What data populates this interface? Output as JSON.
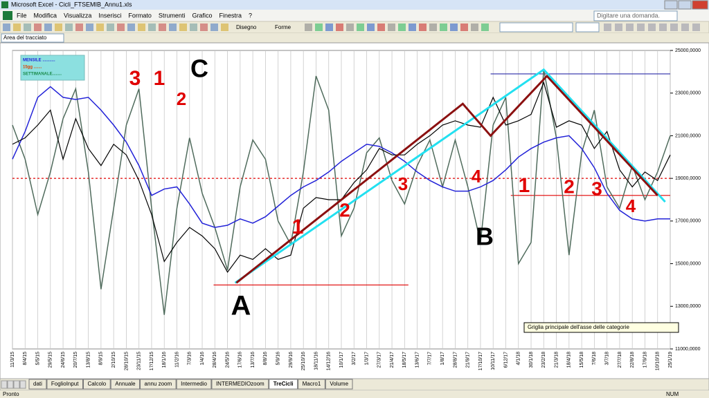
{
  "window": {
    "title": "Microsoft Excel - Cicli_FTSEMIB_Annu1.xls"
  },
  "menu": [
    "File",
    "Modifica",
    "Visualizza",
    "Inserisci",
    "Formato",
    "Strumenti",
    "Grafico",
    "Finestra",
    "?"
  ],
  "help_box": "Digitare una domanda.",
  "toolbar": {
    "drawing": "Disegno",
    "shapes": "Forme"
  },
  "name_box": "Area del tracciato",
  "chart_data": {
    "type": "line",
    "categories": [
      "11/3/15",
      "8/4/15",
      "5/5/15",
      "29/5/15",
      "24/6/15",
      "20/7/15",
      "13/8/15",
      "8/9/15",
      "2/10/15",
      "28/10/15",
      "23/11/15",
      "17/12/15",
      "18/1/16",
      "11/2/16",
      "7/3/16",
      "1/4/16",
      "28/4/16",
      "24/5/16",
      "17/6/16",
      "13/7/16",
      "8/8/16",
      "5/9/16",
      "29/9/16",
      "25/10/16",
      "18/11/16",
      "14/12/16",
      "10/1/17",
      "3/2/17",
      "1/3/17",
      "27/3/17",
      "21/4/17",
      "18/5/17",
      "13/6/17",
      "7/7/17",
      "1/8/17",
      "28/8/17",
      "21/9/17",
      "17/10/17",
      "10/11/17",
      "6/12/17",
      "4/1/18",
      "30/1/18",
      "23/2/18",
      "21/3/18",
      "18/4/18",
      "15/5/18",
      "7/6/18",
      "3/7/18",
      "27/7/18",
      "22/8/18",
      "17/9/18",
      "10/10/18",
      "25/1/19"
    ],
    "series": [
      {
        "color": "#4f6b5c",
        "values": [
          21500,
          19900,
          17300,
          19300,
          21800,
          23200,
          19300,
          13800,
          17600,
          21500,
          23200,
          17600,
          12600,
          17600,
          20900,
          18300,
          16700,
          14700,
          18600,
          20800,
          19900,
          17000,
          15900,
          19300,
          23800,
          22200,
          16300,
          17600,
          20200,
          20900,
          18900,
          17800,
          19600,
          20800,
          18600,
          20800,
          18600,
          16000,
          21500,
          22800,
          15000,
          16000,
          24100,
          20900,
          15400,
          20200,
          22200,
          18600,
          17600,
          19600,
          18000,
          19300,
          21000
        ]
      },
      {
        "color": "#2222d8",
        "values": [
          19900,
          21200,
          22800,
          23300,
          22800,
          22700,
          22800,
          22200,
          21500,
          20700,
          19600,
          18200,
          18500,
          18600,
          17800,
          16900,
          16700,
          16800,
          17100,
          16900,
          17200,
          17700,
          18200,
          18600,
          18900,
          19300,
          19800,
          20200,
          20600,
          20500,
          20200,
          19800,
          19300,
          18900,
          18600,
          18400,
          18400,
          18600,
          18900,
          19400,
          20000,
          20400,
          20700,
          20900,
          21000,
          20400,
          19500,
          18300,
          17500,
          17100,
          17000,
          17100,
          17100
        ]
      },
      {
        "color": "#000000",
        "values": [
          20600,
          20900,
          21500,
          22200,
          19900,
          21800,
          20400,
          19600,
          20600,
          20100,
          18900,
          17300,
          15100,
          16000,
          16700,
          16300,
          15700,
          14600,
          15400,
          15200,
          15700,
          15200,
          15400,
          17600,
          18100,
          18000,
          18000,
          18800,
          19400,
          20400,
          20100,
          20100,
          20600,
          21000,
          21500,
          21700,
          21500,
          21400,
          22800,
          21500,
          21700,
          22000,
          23500,
          21400,
          21700,
          21500,
          20400,
          21200,
          19400,
          18600,
          19300,
          18900,
          20100
        ]
      }
    ],
    "legend": {
      "corner": "top-left",
      "entries": [
        {
          "label": "MENSILE ...........",
          "color": "#2222d8"
        },
        {
          "label": "15gg .......",
          "color": "#e04000"
        },
        {
          "label": "SETTIMANALE........",
          "color": "#1a8a4a"
        }
      ]
    },
    "ylim": [
      11000,
      25000
    ],
    "yticks": [
      {
        "value": 11000,
        "label": "11000,0000"
      },
      {
        "value": 13000,
        "label": "13000,0000"
      },
      {
        "value": 15000,
        "label": "15000,0000"
      },
      {
        "value": 17000,
        "label": "17000,0000"
      },
      {
        "value": 19000,
        "label": "19000,0000"
      },
      {
        "value": 21000,
        "label": "21000,0000"
      },
      {
        "value": 23000,
        "label": "23000,0000"
      },
      {
        "value": 25000,
        "label": "25000,0000"
      }
    ],
    "grid": true,
    "reference_lines": [
      {
        "value": 19000,
        "from": 0,
        "to": 52,
        "color": "#e00000",
        "dashed": true
      },
      {
        "value": 23900,
        "from": 37.8,
        "to": 52,
        "color": "#2a2aa8",
        "dashed": false
      },
      {
        "value": 18200,
        "from": 39.4,
        "to": 52,
        "color": "#e00000",
        "dashed": false
      },
      {
        "value": 14000,
        "from": 15.9,
        "to": 31.3,
        "color": "#e00000",
        "dashed": false
      }
    ],
    "trendlines": [
      {
        "color": "#22e0f0",
        "x": [
          17.6,
          42,
          51.6
        ],
        "y": [
          14100,
          24100,
          17900
        ]
      },
      {
        "color": "#8b1010",
        "x": [
          17.7,
          35.6,
          37.8,
          42.25,
          51
        ],
        "y": [
          14100,
          22500,
          21000,
          23800,
          18200
        ]
      }
    ],
    "annotations": [
      {
        "text": "3",
        "color": "#e00000"
      },
      {
        "text": "1",
        "color": "#e00000"
      },
      {
        "text": "2",
        "color": "#e00000"
      },
      {
        "text": "C",
        "color": "#000000"
      },
      {
        "text": "1",
        "color": "#e00000"
      },
      {
        "text": "2",
        "color": "#e00000"
      },
      {
        "text": "A",
        "color": "#000000"
      },
      {
        "text": "3",
        "color": "#e00000"
      },
      {
        "text": "4",
        "color": "#e00000"
      },
      {
        "text": "B",
        "color": "#000000"
      },
      {
        "text": "1",
        "color": "#e00000"
      },
      {
        "text": "2",
        "color": "#e00000"
      },
      {
        "text": "3",
        "color": "#e00000"
      },
      {
        "text": "4",
        "color": "#e00000"
      }
    ]
  },
  "tooltip": "Griglia principale dell'asse delle categorie",
  "sheet_tabs": [
    "dati",
    "FoglioInput",
    "Calcolo",
    "Annuale",
    "annu zoom",
    "Intermedio",
    "INTERMEDIOzoom",
    "TreCicli",
    "Macro1",
    "Volume"
  ],
  "active_tab": 7,
  "status": {
    "ready": "Pronto",
    "num": "NUM"
  }
}
